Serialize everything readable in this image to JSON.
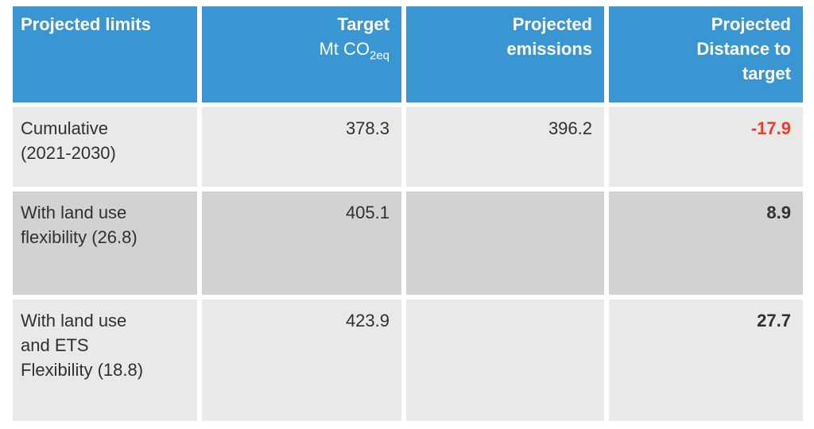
{
  "colors": {
    "page_bg": "#ffffff",
    "header_bg": "#3a96d3",
    "header_text": "#ffffff",
    "row_light_bg": "#e9e9e8",
    "row_dark_bg": "#d2d2d1",
    "body_text": "#303030",
    "negative_value": "#f1392b"
  },
  "table": {
    "header": {
      "col1": "Projected limits",
      "col2_line1": "Target",
      "col2_unit_prefix": "Mt CO",
      "col2_unit_sub": "2eq",
      "col3": "Projected\nemissions",
      "col4": "Projected\nDistance to\ntarget"
    },
    "rows": [
      {
        "label": "Cumulative\n(2021-2030)",
        "target": "378.3",
        "emissions": "396.2",
        "distance": "-17.9"
      },
      {
        "label": "With land use\nflexibility (26.8)",
        "target": "405.1",
        "emissions": "",
        "distance": "8.9"
      },
      {
        "label": "With land use\nand ETS\nFlexibility (18.8)",
        "target": "423.9",
        "emissions": "",
        "distance": "27.7"
      }
    ]
  },
  "chart_data": {
    "type": "table",
    "title": "Projected limits",
    "columns": [
      "Projected limits",
      "Target Mt CO2eq",
      "Projected emissions",
      "Projected Distance to target"
    ],
    "rows": [
      [
        "Cumulative (2021-2030)",
        378.3,
        396.2,
        -17.9
      ],
      [
        "With land use flexibility (26.8)",
        405.1,
        null,
        8.9
      ],
      [
        "With land use and ETS Flexibility (18.8)",
        423.9,
        null,
        27.7
      ]
    ],
    "notes": "Negative distance-to-target value shown in red bold; positive distance values shown in bold black; header row blue with white text; body rows alternate light/dark gray"
  }
}
